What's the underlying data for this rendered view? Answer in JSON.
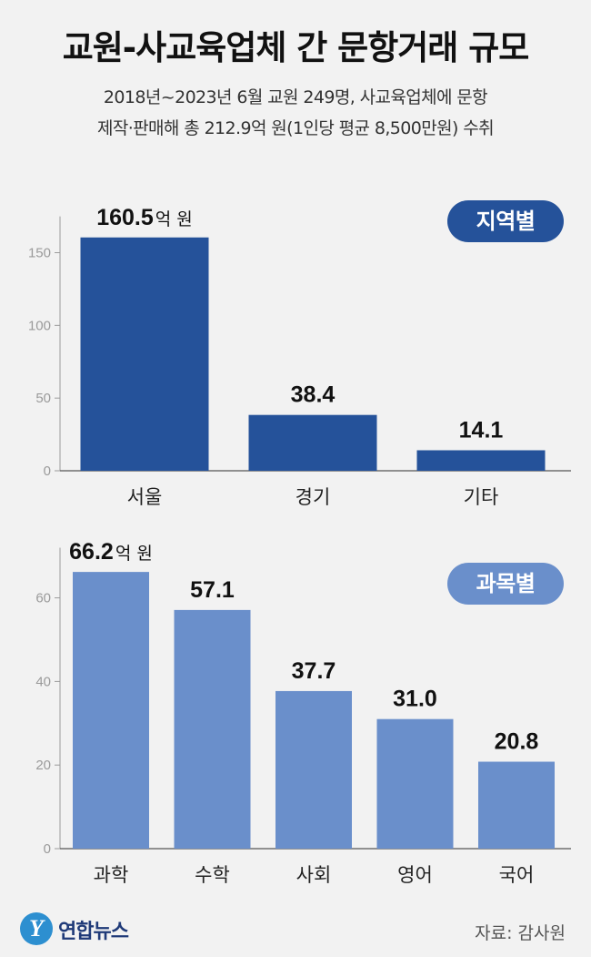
{
  "title": "교원-사교육업체 간 문항거래 규모",
  "subtitle": {
    "line1": "2018년~2023년 6월 교원 249명, 사교육업체에 문항",
    "line2": "제작·판매해 총 212.9억 원(1인당 평균 8,500만원) 수취"
  },
  "unit_label": "억 원",
  "colors": {
    "region_bar": "#25529a",
    "subject_bar": "#6a8fcb",
    "region_badge": "#25529a",
    "subject_badge": "#6a8fcb"
  },
  "chart_data": [
    {
      "type": "bar",
      "badge": "지역별",
      "categories": [
        "서울",
        "경기",
        "기타"
      ],
      "values": [
        160.5,
        38.4,
        14.1
      ],
      "value_labels": [
        "160.5",
        "38.4",
        "14.1"
      ],
      "yticks": [
        "0",
        "50",
        "100",
        "150"
      ],
      "ylim": [
        0,
        175
      ],
      "grid": false
    },
    {
      "type": "bar",
      "badge": "과목별",
      "categories": [
        "과학",
        "수학",
        "사회",
        "영어",
        "국어"
      ],
      "values": [
        66.2,
        57.1,
        37.7,
        31.0,
        20.8
      ],
      "value_labels": [
        "66.2",
        "57.1",
        "37.7",
        "31.0",
        "20.8"
      ],
      "yticks": [
        "0",
        "20",
        "40",
        "60"
      ],
      "ylim": [
        0,
        72
      ],
      "grid": false
    }
  ],
  "footer": {
    "logo_mark": "Y",
    "logo_text": "연합뉴스",
    "source": "자료: 감사원"
  }
}
